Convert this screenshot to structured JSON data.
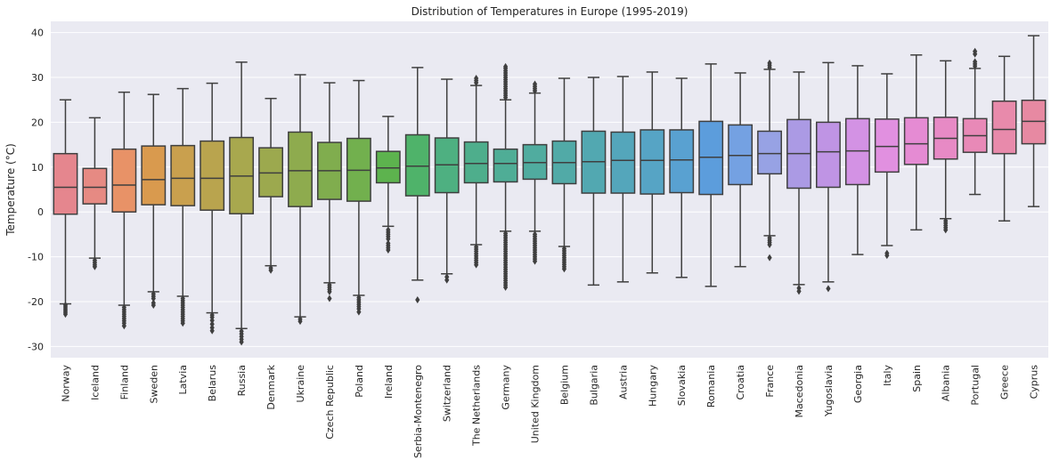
{
  "chart_data": {
    "type": "box",
    "title": "Distribution of Temperatures in Europe (1995-2019)",
    "xlabel": "",
    "ylabel": "Temperature (°C)",
    "ylim": [
      -32.5,
      42.5
    ],
    "yticks": [
      -30,
      -20,
      -10,
      0,
      10,
      20,
      30,
      40
    ],
    "grid": true,
    "categories": [
      "Norway",
      "Iceland",
      "Finland",
      "Sweden",
      "Latvia",
      "Belarus",
      "Russia",
      "Denmark",
      "Ukraine",
      "Czech Republic",
      "Poland",
      "Ireland",
      "Serbia-Montenegro",
      "Switzerland",
      "The Netherlands",
      "Germany",
      "United Kingdom",
      "Belgium",
      "Bulgaria",
      "Austria",
      "Hungary",
      "Slovakia",
      "Romania",
      "Croatia",
      "France",
      "Macedonia",
      "Yugoslavia",
      "Georgia",
      "Italy",
      "Spain",
      "Albania",
      "Portugal",
      "Greece",
      "Cyprus"
    ],
    "colors": [
      "#e5868e",
      "#e68a83",
      "#e89267",
      "#d99a4e",
      "#c9a04e",
      "#b9a44e",
      "#a8a84e",
      "#9ca94e",
      "#8eab4e",
      "#80ad4e",
      "#72b04e",
      "#5db34e",
      "#4fb36a",
      "#4eb081",
      "#4eae8c",
      "#4fad96",
      "#50ac9f",
      "#51aaa7",
      "#52a8b1",
      "#54a6bb",
      "#56a4c5",
      "#59a1d1",
      "#5c9ddc",
      "#74a1e2",
      "#97a2e4",
      "#ab9ae4",
      "#bf94e4",
      "#d392e4",
      "#e190e0",
      "#e58bd3",
      "#e78ac5",
      "#e889b7",
      "#e88aab",
      "#e789a2"
    ],
    "boxes": [
      {
        "whislo": -20.5,
        "q1": -0.5,
        "med": 5.5,
        "q3": 13.0,
        "whishi": 25.0,
        "fliers": [
          -20.8,
          -21.2,
          -21.6,
          -22.0,
          -22.4,
          -22.8
        ]
      },
      {
        "whislo": -10.3,
        "q1": 1.8,
        "med": 5.5,
        "q3": 9.7,
        "whishi": 21.0,
        "fliers": [
          -10.8,
          -11.3,
          -11.8,
          -12.2
        ]
      },
      {
        "whislo": -20.8,
        "q1": 0.0,
        "med": 6.0,
        "q3": 14.0,
        "whishi": 26.7,
        "fliers": [
          -21.3,
          -21.8,
          -22.3,
          -22.8,
          -23.3,
          -23.8,
          -24.3,
          -24.8,
          -25.4
        ]
      },
      {
        "whislo": -17.8,
        "q1": 1.6,
        "med": 7.2,
        "q3": 14.7,
        "whishi": 26.2,
        "fliers": [
          -18.3,
          -18.8,
          -19.3,
          -20.3,
          -20.8
        ]
      },
      {
        "whislo": -18.8,
        "q1": 1.4,
        "med": 7.5,
        "q3": 14.8,
        "whishi": 27.5,
        "fliers": [
          -19.3,
          -19.8,
          -20.3,
          -20.8,
          -21.3,
          -21.8,
          -22.3,
          -22.8,
          -23.3,
          -23.8,
          -24.3,
          -24.8
        ]
      },
      {
        "whislo": -22.5,
        "q1": 0.4,
        "med": 7.5,
        "q3": 15.8,
        "whishi": 28.7,
        "fliers": [
          -23.0,
          -23.5,
          -24.2,
          -25.0,
          -25.8,
          -26.5
        ]
      },
      {
        "whislo": -26.0,
        "q1": -0.4,
        "med": 8.0,
        "q3": 16.6,
        "whishi": 33.4,
        "fliers": [
          -26.6,
          -27.2,
          -27.8,
          -28.4,
          -29.0
        ]
      },
      {
        "whislo": -12.0,
        "q1": 3.4,
        "med": 8.7,
        "q3": 14.3,
        "whishi": 25.3,
        "fliers": [
          -12.5,
          -13.0
        ]
      },
      {
        "whislo": -23.4,
        "q1": 1.2,
        "med": 9.2,
        "q3": 17.8,
        "whishi": 30.6,
        "fliers": [
          -23.9,
          -24.4
        ]
      },
      {
        "whislo": -15.8,
        "q1": 2.8,
        "med": 9.2,
        "q3": 15.5,
        "whishi": 28.8,
        "fliers": [
          -16.3,
          -16.8,
          -17.3,
          -17.8,
          -19.3
        ]
      },
      {
        "whislo": -18.6,
        "q1": 2.4,
        "med": 9.3,
        "q3": 16.4,
        "whishi": 29.3,
        "fliers": [
          -19.1,
          -19.6,
          -20.1,
          -20.6,
          -21.1,
          -21.6,
          -22.3
        ]
      },
      {
        "whislo": -3.2,
        "q1": 6.5,
        "med": 9.8,
        "q3": 13.5,
        "whishi": 21.3,
        "fliers": [
          -4.0,
          -4.5,
          -5.0,
          -5.5,
          -6.0,
          -7.0,
          -7.5,
          -8.0,
          -8.5
        ]
      },
      {
        "whislo": -15.2,
        "q1": 3.6,
        "med": 10.2,
        "q3": 17.2,
        "whishi": 32.2,
        "fliers": [
          -19.6
        ]
      },
      {
        "whislo": -13.8,
        "q1": 4.3,
        "med": 10.5,
        "q3": 16.5,
        "whishi": 29.6,
        "fliers": [
          -14.5,
          -15.2
        ]
      },
      {
        "whislo": -7.3,
        "q1": 6.5,
        "med": 10.8,
        "q3": 15.6,
        "whishi": 28.2,
        "fliers": [
          -7.8,
          -8.3,
          -8.8,
          -9.3,
          -9.8,
          -10.3,
          -10.8,
          -11.3,
          -11.8,
          28.8,
          29.3,
          29.8
        ]
      },
      {
        "whislo": -4.3,
        "q1": 6.7,
        "med": 10.8,
        "q3": 14.0,
        "whishi": 25.0,
        "fliers": [
          -4.8,
          -5.3,
          -5.8,
          -6.3,
          -6.8,
          -7.3,
          -7.8,
          -8.3,
          -8.8,
          -9.3,
          -9.8,
          -10.3,
          -10.8,
          -11.3,
          -11.8,
          -12.3,
          -12.8,
          -13.3,
          -13.8,
          -14.3,
          -14.8,
          -15.3,
          -15.8,
          -16.3,
          -16.8,
          25.5,
          26.0,
          26.5,
          27.0,
          27.5,
          28.0,
          28.5,
          29.0,
          29.5,
          30.0,
          30.5,
          31.0,
          31.5,
          32.0,
          32.4
        ]
      },
      {
        "whislo": -4.3,
        "q1": 7.3,
        "med": 11.0,
        "q3": 15.0,
        "whishi": 26.5,
        "fliers": [
          -5.0,
          -5.5,
          -6.0,
          -6.5,
          -7.0,
          -7.5,
          -8.0,
          -8.5,
          -9.0,
          -9.5,
          -10.0,
          -10.5,
          -11.0,
          27.0,
          27.5,
          28.0,
          28.5
        ]
      },
      {
        "whislo": -7.7,
        "q1": 6.3,
        "med": 11.0,
        "q3": 15.8,
        "whishi": 29.8,
        "fliers": [
          -8.2,
          -8.7,
          -9.2,
          -9.7,
          -10.2,
          -10.7,
          -11.2,
          -11.7,
          -12.2,
          -12.7
        ]
      },
      {
        "whislo": -16.3,
        "q1": 4.2,
        "med": 11.2,
        "q3": 18.0,
        "whishi": 30.0,
        "fliers": []
      },
      {
        "whislo": -15.6,
        "q1": 4.2,
        "med": 11.5,
        "q3": 17.8,
        "whishi": 30.2,
        "fliers": []
      },
      {
        "whislo": -13.6,
        "q1": 4.0,
        "med": 11.5,
        "q3": 18.3,
        "whishi": 31.2,
        "fliers": []
      },
      {
        "whislo": -14.6,
        "q1": 4.3,
        "med": 11.6,
        "q3": 18.3,
        "whishi": 29.8,
        "fliers": []
      },
      {
        "whislo": -16.6,
        "q1": 3.9,
        "med": 12.2,
        "q3": 20.2,
        "whishi": 33.0,
        "fliers": []
      },
      {
        "whislo": -12.2,
        "q1": 6.1,
        "med": 12.6,
        "q3": 19.4,
        "whishi": 31.0,
        "fliers": []
      },
      {
        "whislo": -5.3,
        "q1": 8.5,
        "med": 13.0,
        "q3": 18.0,
        "whishi": 31.8,
        "fliers": [
          -5.8,
          -6.3,
          -6.8,
          -7.3,
          -10.2,
          32.2,
          32.7,
          33.2
        ]
      },
      {
        "whislo": -16.2,
        "q1": 5.3,
        "med": 13.0,
        "q3": 20.6,
        "whishi": 31.2,
        "fliers": [
          -17.0,
          -17.7
        ]
      },
      {
        "whislo": -15.6,
        "q1": 5.5,
        "med": 13.4,
        "q3": 20.0,
        "whishi": 33.3,
        "fliers": [
          -17.1
        ]
      },
      {
        "whislo": -9.5,
        "q1": 6.1,
        "med": 13.6,
        "q3": 20.8,
        "whishi": 32.6,
        "fliers": []
      },
      {
        "whislo": -7.5,
        "q1": 8.9,
        "med": 14.6,
        "q3": 20.7,
        "whishi": 30.8,
        "fliers": [
          -9.2,
          -9.7
        ]
      },
      {
        "whislo": -4.0,
        "q1": 10.6,
        "med": 15.2,
        "q3": 21.0,
        "whishi": 35.0,
        "fliers": []
      },
      {
        "whislo": -1.5,
        "q1": 11.8,
        "med": 16.4,
        "q3": 21.1,
        "whishi": 33.7,
        "fliers": [
          -2.0,
          -2.5,
          -3.0,
          -3.5,
          -4.0
        ]
      },
      {
        "whislo": 3.9,
        "q1": 13.3,
        "med": 17.0,
        "q3": 20.8,
        "whishi": 32.0,
        "fliers": [
          32.5,
          33.0,
          33.5,
          35.2,
          35.8
        ]
      },
      {
        "whislo": -2.0,
        "q1": 13.0,
        "med": 18.4,
        "q3": 24.7,
        "whishi": 34.7,
        "fliers": []
      },
      {
        "whislo": 1.2,
        "q1": 15.2,
        "med": 20.2,
        "q3": 24.9,
        "whishi": 39.3,
        "fliers": []
      }
    ]
  }
}
